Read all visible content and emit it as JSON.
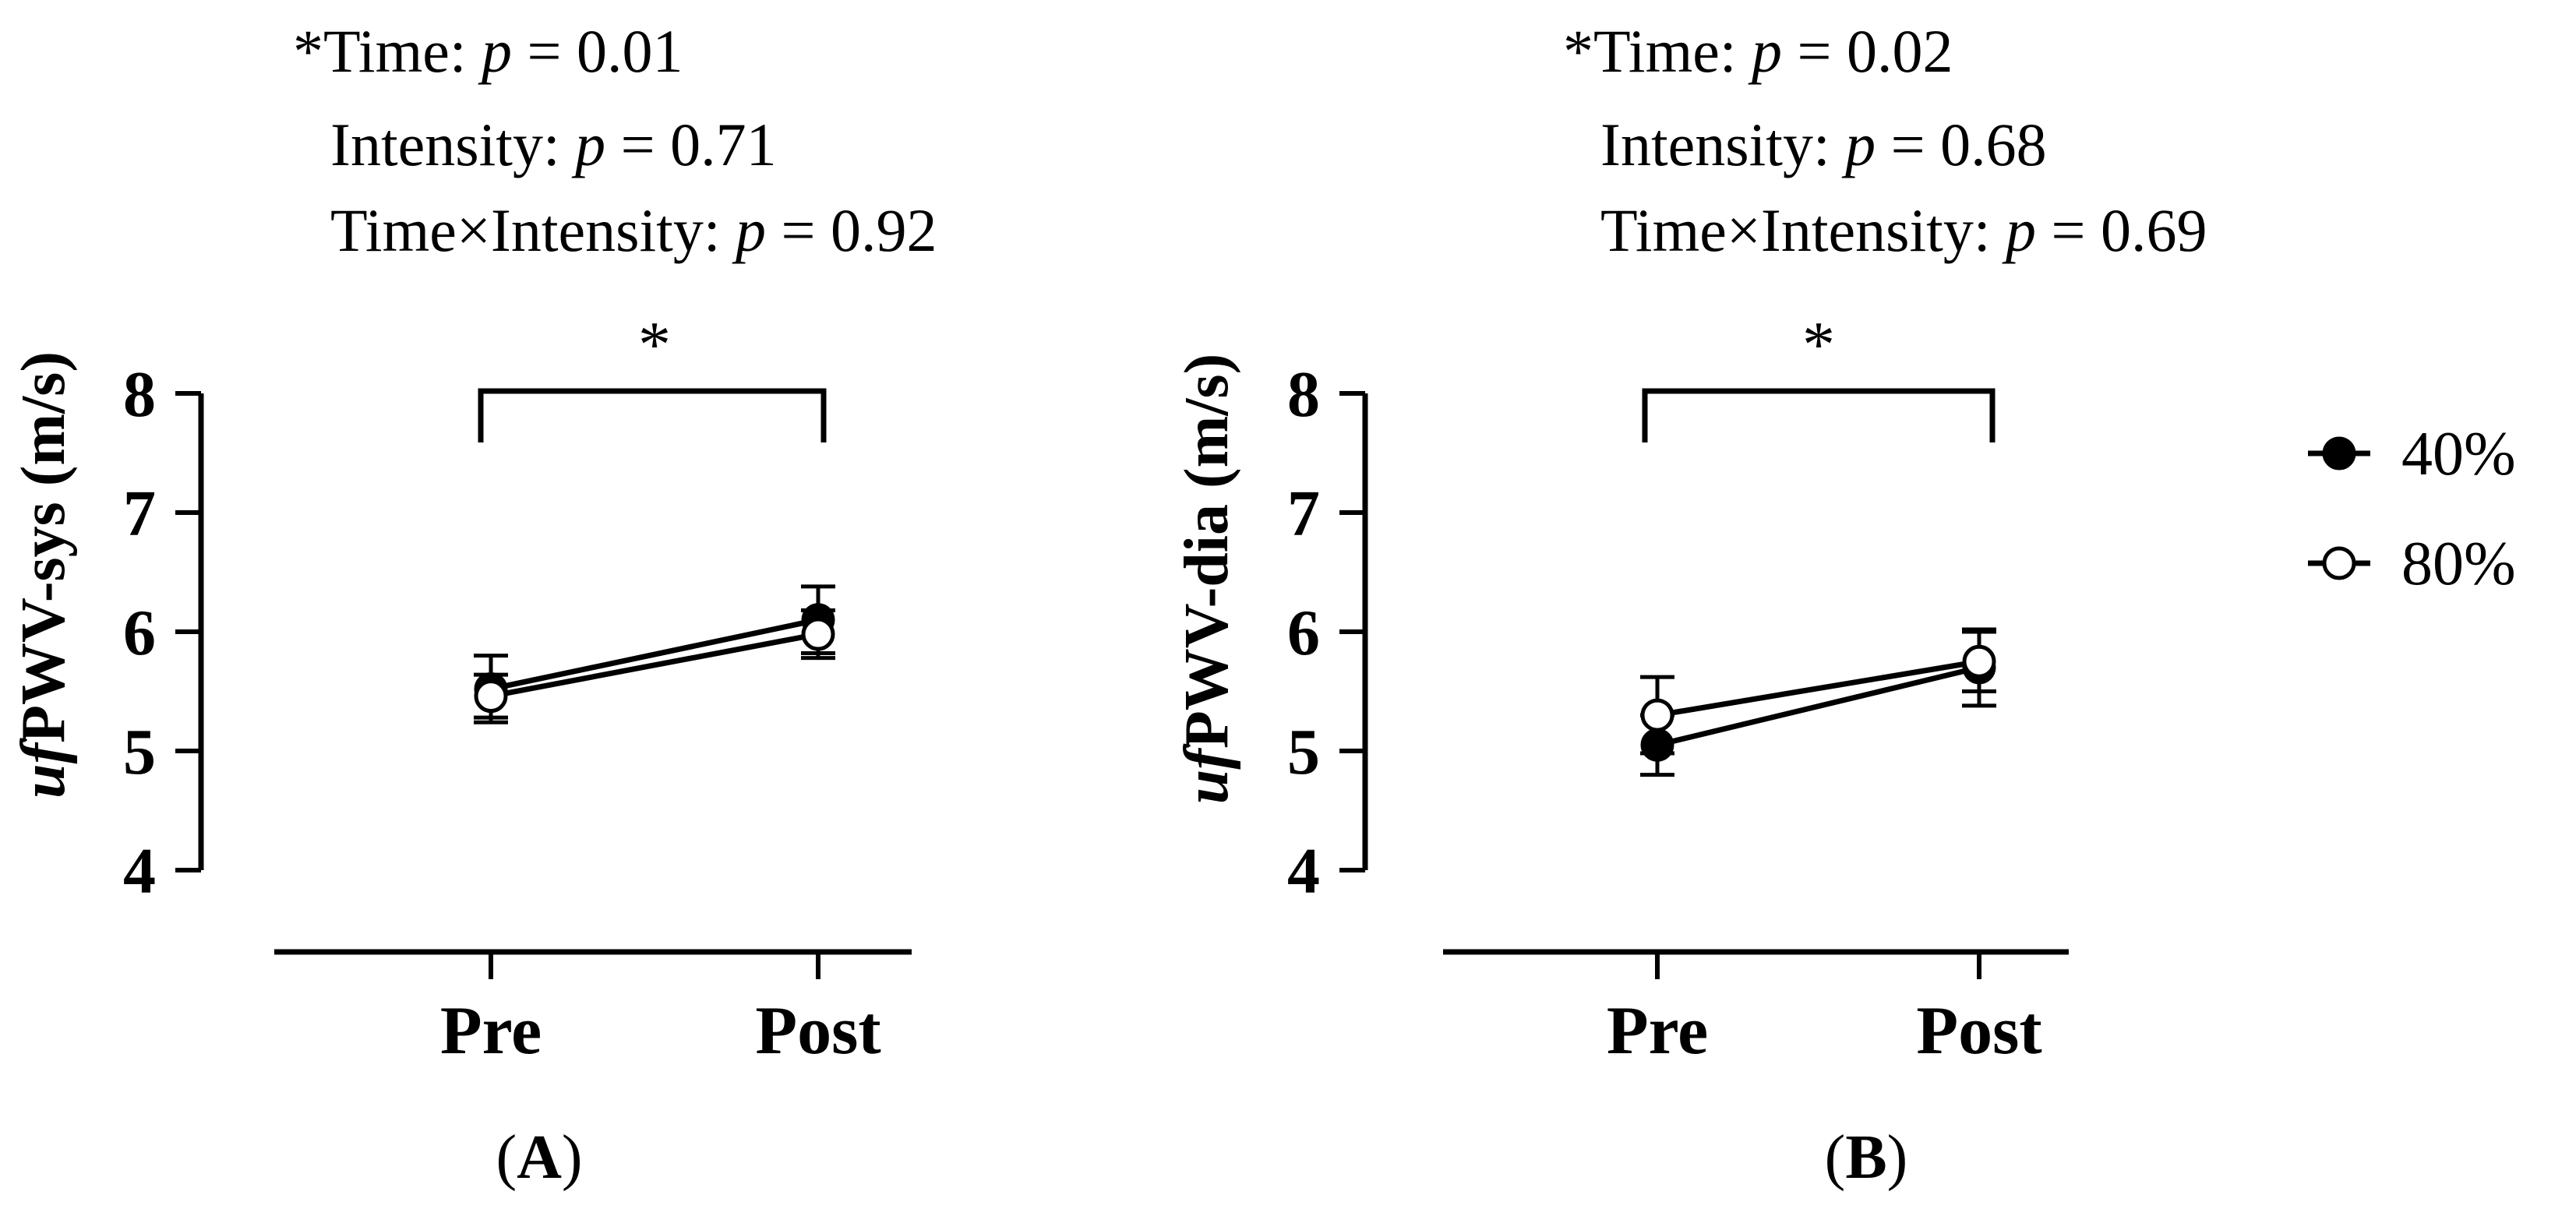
{
  "legend": [
    {
      "label": "40%",
      "marker": "filled"
    },
    {
      "label": "80%",
      "marker": "open"
    }
  ],
  "colors": {
    "ink": "#000000",
    "background": "#ffffff"
  },
  "chart_data": [
    {
      "type": "line",
      "panel_label": "A",
      "stats": {
        "line1": {
          "prefix": "*Time: ",
          "p": "p",
          "value": " = 0.01"
        },
        "line2": {
          "prefix": "Intensity: ",
          "p": "p",
          "value": " = 0.71"
        },
        "line3": {
          "prefix": "Time×Intensity: ",
          "p": "p",
          "value": " = 0.92"
        }
      },
      "ylabel": {
        "italic": "uf",
        "rest": "PWV-sys (m/s)"
      },
      "categories": [
        "Pre",
        "Post"
      ],
      "yticks": [
        "4",
        "5",
        "6",
        "7",
        "8"
      ],
      "ylim": [
        4,
        8
      ],
      "significance": "*",
      "series": [
        {
          "name": "40%",
          "values": [
            5.52,
            6.1
          ],
          "err": [
            0.28,
            0.28
          ]
        },
        {
          "name": "80%",
          "values": [
            5.46,
            5.98
          ],
          "err": [
            0.18,
            0.2
          ]
        }
      ]
    },
    {
      "type": "line",
      "panel_label": "B",
      "stats": {
        "line1": {
          "prefix": "*Time: ",
          "p": "p",
          "value": " = 0.02"
        },
        "line2": {
          "prefix": "Intensity: ",
          "p": "p",
          "value": " = 0.68"
        },
        "line3": {
          "prefix": "Time×Intensity: ",
          "p": "p",
          "value": " = 0.69"
        }
      },
      "ylabel": {
        "italic": "uf",
        "rest": "PWV-dia (m/s)"
      },
      "categories": [
        "Pre",
        "Post"
      ],
      "yticks": [
        "4",
        "5",
        "6",
        "7",
        "8"
      ],
      "ylim": [
        4,
        8
      ],
      "significance": "*",
      "series": [
        {
          "name": "40%",
          "values": [
            5.05,
            5.7
          ],
          "err": [
            0.25,
            0.32
          ]
        },
        {
          "name": "80%",
          "values": [
            5.3,
            5.75
          ],
          "err": [
            0.32,
            0.25
          ]
        }
      ]
    }
  ]
}
